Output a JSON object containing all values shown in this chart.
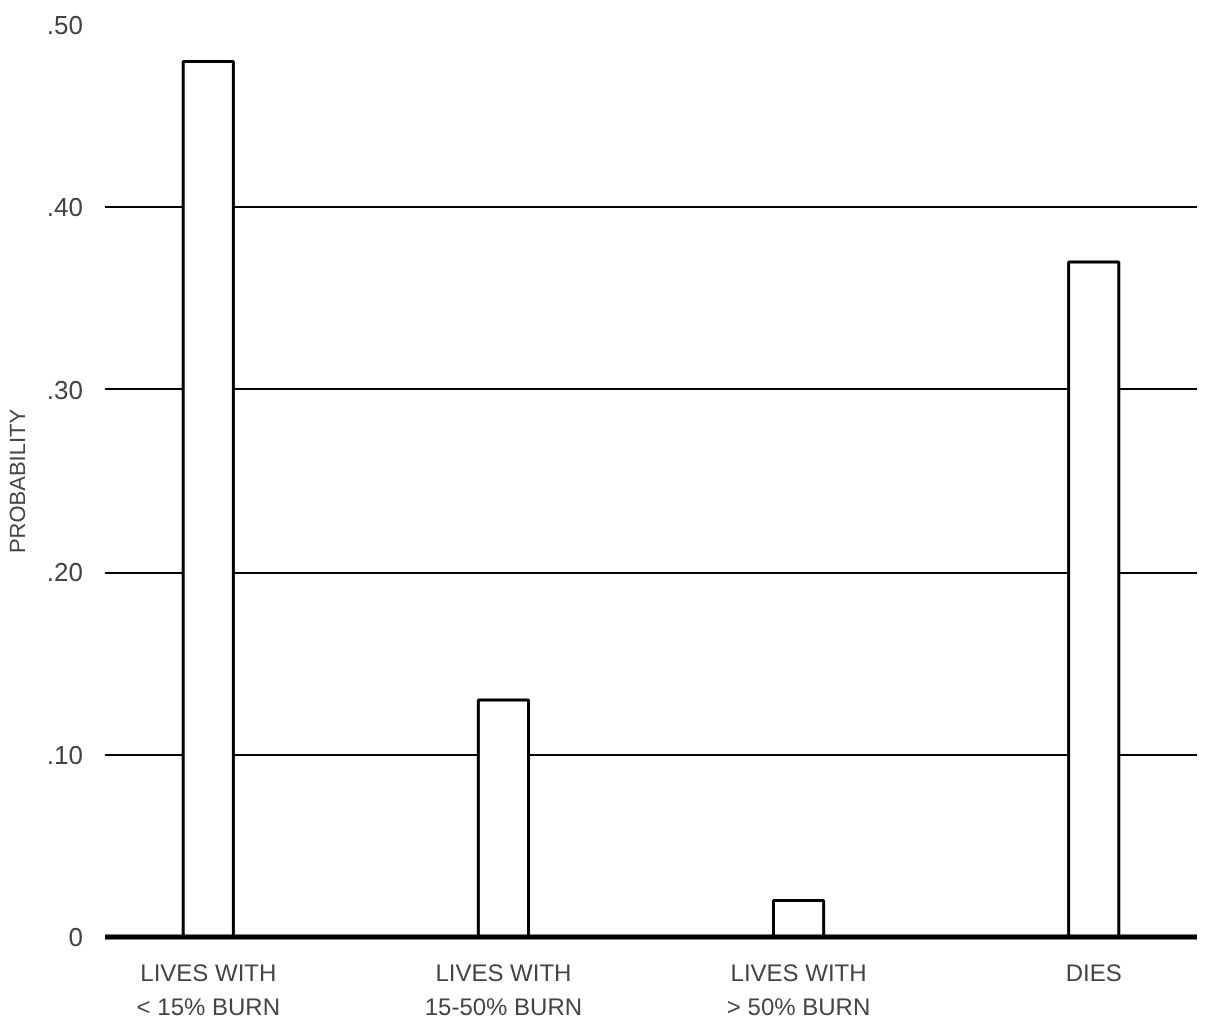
{
  "chart_data": {
    "type": "bar",
    "ylabel": "PROBABILITY",
    "categories": [
      "LIVES WITH\n< 15% BURN",
      "LIVES WITH\n15-50% BURN",
      "LIVES WITH\n> 50% BURN",
      "DIES"
    ],
    "values": [
      0.48,
      0.13,
      0.02,
      0.37
    ],
    "color": "#ffffff",
    "ylim": [
      0,
      0.5
    ],
    "yticks": [
      {
        "value": 0,
        "label": "0"
      },
      {
        "value": 0.1,
        "label": ".10"
      },
      {
        "value": 0.2,
        "label": ".20"
      },
      {
        "value": 0.3,
        "label": ".30"
      },
      {
        "value": 0.4,
        "label": ".40"
      },
      {
        "value": 0.5,
        "label": ".50"
      }
    ],
    "grid": "y"
  }
}
